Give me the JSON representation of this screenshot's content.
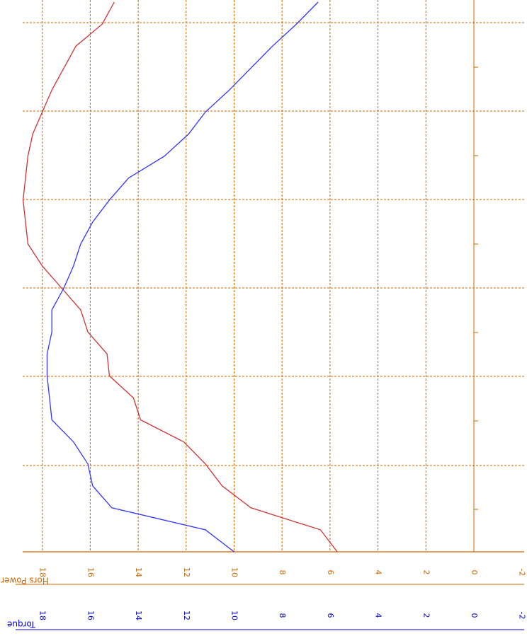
{
  "chart_data": {
    "type": "line",
    "orientation": "rotated-90-clockwise",
    "xlabel": "",
    "x_ticks_shown": false,
    "axes": [
      {
        "name": "Hors Power",
        "color": "#cc6600",
        "ticks": [
          "18",
          "16",
          "14",
          "12",
          "10",
          "8",
          "6",
          "4",
          "2",
          "0",
          "-2"
        ]
      },
      {
        "name": "Torque",
        "color": "#0000cc",
        "ticks": [
          "18",
          "16",
          "14",
          "12",
          "10",
          "8",
          "6",
          "4",
          "2",
          "0",
          "-2"
        ]
      }
    ],
    "ylim": [
      -2,
      19
    ],
    "xlim": [
      0,
      12.5
    ],
    "grid": true,
    "grid_color": "#cc6600",
    "series": [
      {
        "axis": "Hors Power",
        "color": "#cc3333",
        "x": [
          0,
          0.5,
          1.0,
          1.5,
          2.0,
          2.5,
          3.0,
          3.5,
          4.0,
          4.5,
          5.0,
          5.5,
          6.0,
          6.5,
          7.0,
          7.5,
          8.0,
          8.5,
          9.0,
          9.5,
          10.0,
          10.5,
          11.0,
          11.5,
          12.0,
          12.5
        ],
        "values": [
          5.7,
          6.4,
          9.3,
          10.5,
          11.2,
          12.1,
          13.9,
          14.2,
          15.2,
          15.3,
          16.1,
          16.4,
          17.2,
          18.0,
          18.6,
          18.7,
          18.8,
          18.7,
          18.6,
          18.4,
          18.0,
          17.6,
          17.1,
          16.6,
          15.5,
          15.0
        ]
      },
      {
        "axis": "Torque",
        "color": "#3333ff",
        "x": [
          0,
          0.5,
          1.0,
          1.5,
          2.0,
          2.5,
          3.0,
          3.5,
          4.0,
          4.5,
          5.0,
          5.5,
          6.0,
          6.5,
          7.0,
          7.5,
          8.0,
          8.5,
          9.0,
          9.5,
          10.0,
          10.5,
          11.0,
          11.5,
          12.0,
          12.5
        ],
        "values": [
          10.0,
          11.2,
          15.1,
          15.9,
          16.1,
          16.7,
          17.6,
          17.7,
          17.8,
          17.8,
          17.6,
          17.6,
          17.1,
          16.7,
          16.4,
          15.9,
          15.2,
          14.4,
          12.9,
          11.9,
          11.2,
          10.2,
          9.3,
          8.4,
          7.4,
          6.5
        ]
      }
    ]
  }
}
